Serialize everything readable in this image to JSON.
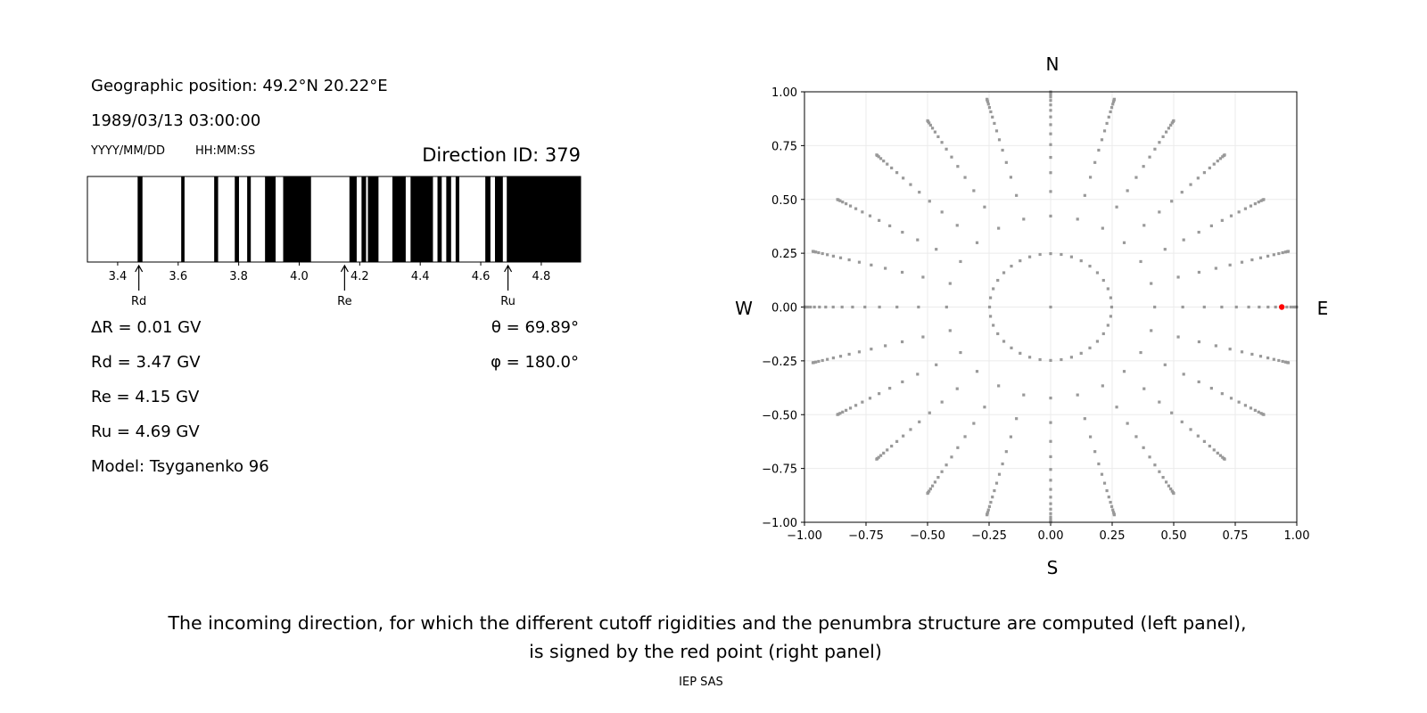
{
  "info": {
    "position": "Geographic position: 49.2°N 20.22°E",
    "datetime": "1989/03/13 03:00:00",
    "date_format": "YYYY/MM/DD",
    "time_format": "HH:MM:SS",
    "direction_id": "Direction ID: 379",
    "delta_r": "ΔR = 0.01 GV",
    "rd": "Rd = 3.47 GV",
    "re": "Re = 4.15 GV",
    "ru": "Ru = 4.69 GV",
    "model": "Model: Tsyganenko 96",
    "theta": "θ = 69.89°",
    "phi": "φ = 180.0°"
  },
  "caption": {
    "line1": "The incoming direction, for which the different cutoff rigidities and the penumbra structure are computed (left panel),",
    "line2": "is signed by the red point (right panel)",
    "credit": "IEP SAS"
  },
  "chart_data": [
    {
      "type": "bar",
      "subtype": "penumbra-strip",
      "xlim": [
        3.3,
        4.93
      ],
      "xticks": [
        "3.4",
        "3.6",
        "3.8",
        "4.0",
        "4.2",
        "4.4",
        "4.6",
        "4.8"
      ],
      "xtick_values": [
        3.4,
        3.6,
        3.8,
        4.0,
        4.2,
        4.4,
        4.6,
        4.8
      ],
      "forbidden_bands": [
        [
          3.466,
          3.482
        ],
        [
          3.61,
          3.621
        ],
        [
          3.719,
          3.732
        ],
        [
          3.787,
          3.801
        ],
        [
          3.828,
          3.84
        ],
        [
          3.887,
          3.922
        ],
        [
          3.947,
          4.039
        ],
        [
          4.166,
          4.19
        ],
        [
          4.206,
          4.221
        ],
        [
          4.227,
          4.262
        ],
        [
          4.308,
          4.352
        ],
        [
          4.368,
          4.442
        ],
        [
          4.457,
          4.471
        ],
        [
          4.486,
          4.502
        ],
        [
          4.517,
          4.529
        ],
        [
          4.615,
          4.632
        ],
        [
          4.647,
          4.673
        ],
        [
          4.686,
          4.93
        ]
      ],
      "colors": {
        "forbidden": "#000000",
        "allowed": "#ffffff"
      },
      "markers": [
        {
          "label": "Rd",
          "value": 3.47
        },
        {
          "label": "Re",
          "value": 4.15
        },
        {
          "label": "Ru",
          "value": 4.69
        }
      ]
    },
    {
      "type": "scatter",
      "subtype": "direction-map",
      "xlim": [
        -1.0,
        1.0
      ],
      "ylim": [
        -1.0,
        1.0
      ],
      "xticks": [
        "−1.00",
        "−0.75",
        "−0.50",
        "−0.25",
        "0.00",
        "0.25",
        "0.50",
        "0.75",
        "1.00"
      ],
      "yticks": [
        "−1.00",
        "−0.75",
        "−0.50",
        "−0.25",
        "0.00",
        "0.25",
        "0.50",
        "0.75",
        "1.00"
      ],
      "tick_values": [
        -1,
        -0.75,
        -0.5,
        -0.25,
        0,
        0.25,
        0.5,
        0.75,
        1
      ],
      "grid": true,
      "compass": {
        "north": "N",
        "south": "S",
        "west": "W",
        "east": "E"
      },
      "grid_points": {
        "azimuth_step_deg": 15,
        "inner_ring_azimuth_step_deg": 10,
        "ring_cos_zenith": [
          0.96875,
          0.90625,
          0.84375,
          0.78125,
          0.71875,
          0.65625,
          0.59375,
          0.53125,
          0.46875,
          0.40625,
          0.34375,
          0.28125,
          0.21875,
          0.15625,
          0.09375,
          0.03125
        ],
        "center": [
          0,
          0
        ],
        "color": "#999999"
      },
      "selected_point": {
        "x": 0.939,
        "y": 0.0,
        "color": "#ff0000"
      }
    }
  ]
}
